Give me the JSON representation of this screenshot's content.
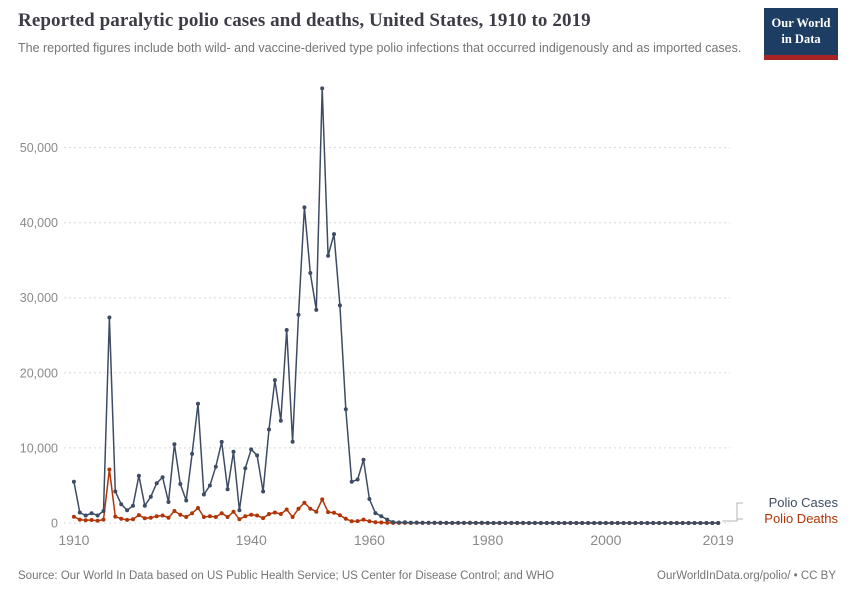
{
  "header": {
    "title": "Reported paralytic polio cases and deaths, United States, 1910 to 2019",
    "subtitle": "The reported figures include both wild- and vaccine-derived type polio infections that occurred indigenously and as imported cases.",
    "logo": {
      "line1": "Our World",
      "line2": "in Data"
    }
  },
  "footer": {
    "source": "Source: Our World In Data based on US Public Health Service; US Center for Disease Control; and WHO",
    "link": "OurWorldInData.org/polio/ • CC BY"
  },
  "colors": {
    "title_text": "#3c3c46",
    "subtitle_text": "#757575",
    "logo_background": "#1d3d63",
    "logo_red_bar": "#a82424",
    "cases_line": "#3e4c63",
    "deaths_line": "#b13507",
    "gridline": "#d8d8d8",
    "tick_label": "#8a8a8a",
    "footer_text": "#757575"
  },
  "chart_data": {
    "type": "line",
    "title": "Reported paralytic polio cases and deaths, United States, 1910 to 2019",
    "xlabel": "",
    "ylabel": "",
    "grid": "horizontal-dotted",
    "legend_position": "right-of-line-ends",
    "xlim": [
      1909,
      2021
    ],
    "ylim": [
      0,
      58600
    ],
    "xticks": [
      1910,
      1940,
      1960,
      1980,
      2000,
      2019
    ],
    "yticks": [
      0,
      10000,
      20000,
      30000,
      40000,
      50000
    ],
    "x": [
      1910,
      1911,
      1912,
      1913,
      1914,
      1915,
      1916,
      1917,
      1918,
      1919,
      1920,
      1921,
      1922,
      1923,
      1924,
      1925,
      1926,
      1927,
      1928,
      1929,
      1930,
      1931,
      1932,
      1933,
      1934,
      1935,
      1936,
      1937,
      1938,
      1939,
      1940,
      1941,
      1942,
      1943,
      1944,
      1945,
      1946,
      1947,
      1948,
      1949,
      1950,
      1951,
      1952,
      1953,
      1954,
      1955,
      1956,
      1957,
      1958,
      1959,
      1960,
      1961,
      1962,
      1963,
      1964,
      1965,
      1966,
      1967,
      1968,
      1969,
      1970,
      1971,
      1972,
      1973,
      1974,
      1975,
      1976,
      1977,
      1978,
      1979,
      1980,
      1981,
      1982,
      1983,
      1984,
      1985,
      1986,
      1987,
      1988,
      1989,
      1990,
      1991,
      1992,
      1993,
      1994,
      1995,
      1996,
      1997,
      1998,
      1999,
      2000,
      2001,
      2002,
      2003,
      2004,
      2005,
      2006,
      2007,
      2008,
      2009,
      2010,
      2011,
      2012,
      2013,
      2014,
      2015,
      2016,
      2017,
      2018,
      2019
    ],
    "series": [
      {
        "name": "Polio Cases",
        "color": "#3e4c63",
        "values": [
          5500,
          1400,
          1000,
          1300,
          1000,
          1600,
          27363,
          4200,
          2500,
          1700,
          2300,
          6300,
          2300,
          3500,
          5300,
          6100,
          2800,
          10500,
          5200,
          3000,
          9200,
          15872,
          3800,
          5000,
          7500,
          10800,
          4500,
          9500,
          1700,
          7300,
          9800,
          9000,
          4200,
          12450,
          19029,
          13624,
          25698,
          10827,
          27726,
          42033,
          33300,
          28386,
          57879,
          35592,
          38476,
          28985,
          15140,
          5485,
          5787,
          8425,
          3190,
          1312,
          910,
          449,
          122,
          72,
          113,
          41,
          53,
          20,
          33,
          21,
          31,
          8,
          7,
          8,
          14,
          18,
          15,
          34,
          9,
          6,
          8,
          15,
          8,
          7,
          8,
          6,
          9,
          5,
          6,
          9,
          6,
          3,
          8,
          6,
          5,
          5,
          1,
          1,
          0,
          0,
          0,
          0,
          0,
          1,
          0,
          0,
          0,
          1,
          0,
          0,
          0,
          0,
          0,
          0,
          0,
          0,
          0,
          0
        ]
      },
      {
        "name": "Polio Deaths",
        "color": "#b13507",
        "values": [
          840,
          450,
          360,
          400,
          310,
          450,
          7130,
          850,
          560,
          410,
          510,
          1050,
          620,
          700,
          900,
          1000,
          700,
          1600,
          1100,
          800,
          1300,
          2000,
          800,
          900,
          800,
          1300,
          800,
          1500,
          500,
          900,
          1100,
          1000,
          650,
          1200,
          1400,
          1200,
          1800,
          800,
          1900,
          2700,
          1900,
          1500,
          3145,
          1450,
          1368,
          1043,
          566,
          221,
          255,
          454,
          230,
          90,
          60,
          41,
          17,
          16,
          9,
          16,
          24,
          13,
          7,
          18,
          2,
          10,
          2,
          9,
          16,
          20,
          0,
          3,
          0,
          0,
          0,
          0,
          0,
          0,
          0,
          0,
          0,
          0,
          0,
          0,
          0,
          0,
          0,
          0,
          0,
          0,
          0,
          0,
          0,
          0,
          0,
          0,
          0,
          0,
          0,
          0,
          0,
          0,
          0,
          0,
          0,
          0,
          0,
          0,
          0,
          0,
          0,
          0
        ]
      }
    ]
  }
}
